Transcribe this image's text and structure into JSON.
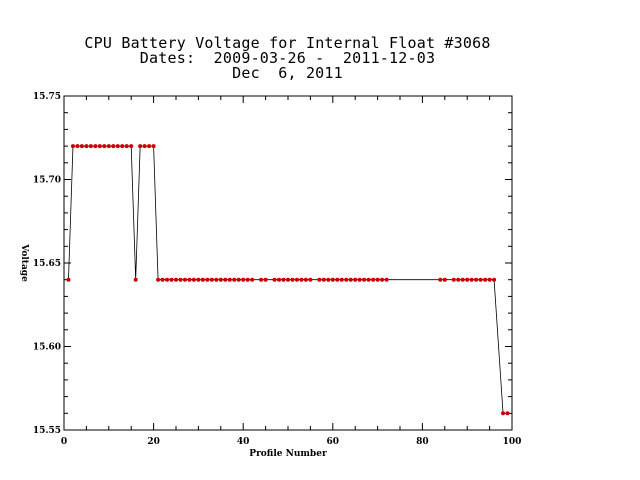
{
  "title": {
    "line1": "CPU Battery Voltage for Internal Float #3068",
    "line2": "Dates:  2009-03-26 -  2011-12-03",
    "line3": "Dec  6, 2011"
  },
  "chart_data": {
    "type": "line",
    "title": "CPU Battery Voltage for Internal Float #3068",
    "xlabel": "Profile Number",
    "ylabel": "Voltage",
    "xlim": [
      0,
      100
    ],
    "ylim": [
      15.55,
      15.75
    ],
    "x_ticks": [
      0,
      20,
      40,
      60,
      80,
      100
    ],
    "y_ticks": [
      15.55,
      15.6,
      15.65,
      15.7,
      15.75
    ],
    "x_tick_labels": [
      "0",
      "20",
      "40",
      "60",
      "80",
      "100"
    ],
    "y_tick_labels": [
      "15.55",
      "15.60",
      "15.65",
      "15.70",
      "15.75"
    ],
    "grid": false,
    "colors": {
      "line": "#000000",
      "marker": "#cc0000"
    },
    "series": [
      {
        "x": [
          1,
          2,
          3,
          4,
          5,
          6,
          7,
          8,
          9,
          10,
          11,
          12,
          13,
          14,
          15,
          16,
          17,
          18,
          19,
          20,
          21,
          22,
          23,
          24,
          25,
          26,
          27,
          28,
          29,
          30,
          31,
          32,
          33,
          34,
          35,
          36,
          37,
          38,
          39,
          40,
          41,
          42,
          44,
          45,
          47,
          48,
          49,
          50,
          51,
          52,
          53,
          54,
          55,
          57,
          58,
          59,
          60,
          61,
          62,
          63,
          64,
          65,
          66,
          67,
          68,
          69,
          70,
          71,
          72,
          84,
          85,
          87,
          88,
          89,
          90,
          91,
          92,
          93,
          94,
          95,
          96,
          98,
          99
        ],
        "y": [
          15.64,
          15.72,
          15.72,
          15.72,
          15.72,
          15.72,
          15.72,
          15.72,
          15.72,
          15.72,
          15.72,
          15.72,
          15.72,
          15.72,
          15.72,
          15.64,
          15.72,
          15.72,
          15.72,
          15.72,
          15.64,
          15.64,
          15.64,
          15.64,
          15.64,
          15.64,
          15.64,
          15.64,
          15.64,
          15.64,
          15.64,
          15.64,
          15.64,
          15.64,
          15.64,
          15.64,
          15.64,
          15.64,
          15.64,
          15.64,
          15.64,
          15.64,
          15.64,
          15.64,
          15.64,
          15.64,
          15.64,
          15.64,
          15.64,
          15.64,
          15.64,
          15.64,
          15.64,
          15.64,
          15.64,
          15.64,
          15.64,
          15.64,
          15.64,
          15.64,
          15.64,
          15.64,
          15.64,
          15.64,
          15.64,
          15.64,
          15.64,
          15.64,
          15.64,
          15.64,
          15.64,
          15.64,
          15.64,
          15.64,
          15.64,
          15.64,
          15.64,
          15.64,
          15.64,
          15.64,
          15.64,
          15.56,
          15.56
        ]
      }
    ]
  }
}
